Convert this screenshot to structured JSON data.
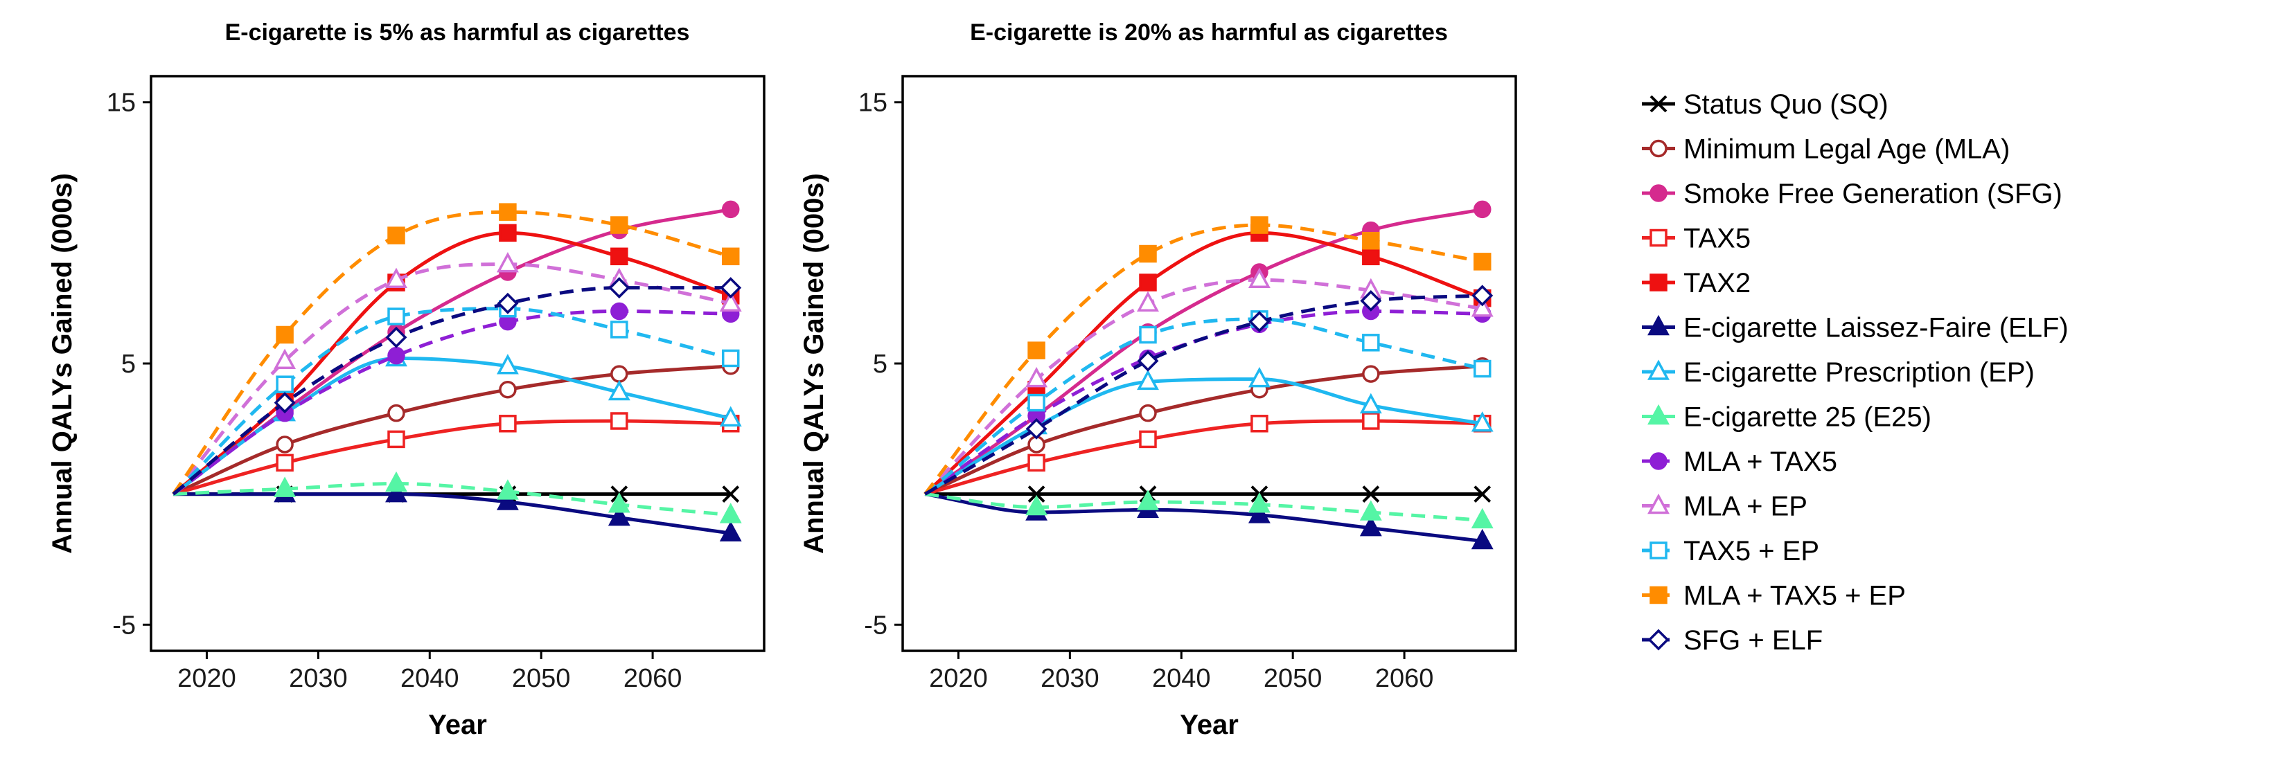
{
  "chart_data": [
    {
      "type": "line",
      "title": "E-cigarette is 5% as harmful as cigarettes",
      "xlabel": "Year",
      "ylabel": "Annual QALYs Gained (000s)",
      "xlim": [
        2015,
        2070
      ],
      "ylim": [
        -6,
        16
      ],
      "xticks": [
        "2020",
        "2030",
        "2040",
        "2050",
        "2060"
      ],
      "yticks": [
        "-5",
        "5",
        "15"
      ],
      "x": [
        2017,
        2027,
        2037,
        2047,
        2057,
        2067
      ],
      "grid": false,
      "series": [
        {
          "name": "Status Quo (SQ)",
          "color": "#000000",
          "dash": "solid",
          "marker": "x",
          "values": [
            0,
            0.0,
            0.0,
            0.0,
            0.0,
            0.0
          ]
        },
        {
          "name": "Minimum Legal Age (MLA)",
          "color": "#A52A2A",
          "dash": "solid",
          "marker": "circle-open",
          "values": [
            0,
            1.9,
            3.1,
            4.0,
            4.6,
            4.9
          ]
        },
        {
          "name": "Smoke Free Generation (SFG)",
          "color": "#D52A8E",
          "dash": "solid",
          "marker": "circle",
          "values": [
            0,
            3.2,
            6.2,
            8.5,
            10.1,
            10.9
          ]
        },
        {
          "name": "TAX5",
          "color": "#EE2222",
          "dash": "solid",
          "marker": "square-open",
          "values": [
            0,
            1.2,
            2.1,
            2.7,
            2.8,
            2.7
          ]
        },
        {
          "name": "TAX2",
          "color": "#EE1111",
          "dash": "solid",
          "marker": "square",
          "values": [
            0,
            3.6,
            8.1,
            10.0,
            9.1,
            7.6
          ]
        },
        {
          "name": "E-cigarette Laissez-Faire (ELF)",
          "color": "#0A0A80",
          "dash": "solid",
          "marker": "triangle",
          "values": [
            0,
            0.0,
            0.0,
            -0.3,
            -0.9,
            -1.5
          ]
        },
        {
          "name": "E-cigarette Prescription (EP)",
          "color": "#1FB8F0",
          "dash": "solid",
          "marker": "triangle-open",
          "values": [
            0,
            3.1,
            5.2,
            4.9,
            3.9,
            2.9
          ]
        },
        {
          "name": "E-cigarette 25 (E25)",
          "color": "#55F5A5",
          "dash": "dashed",
          "marker": "triangle",
          "values": [
            0,
            0.2,
            0.4,
            0.1,
            -0.4,
            -0.8
          ]
        },
        {
          "name": "MLA + TAX5",
          "color": "#8E1FD5",
          "dash": "dashed",
          "marker": "circle",
          "values": [
            0,
            3.1,
            5.3,
            6.6,
            7.0,
            6.9
          ]
        },
        {
          "name": "MLA + EP",
          "color": "#D070D8",
          "dash": "dashed",
          "marker": "triangle-open",
          "values": [
            0,
            5.1,
            8.2,
            8.8,
            8.2,
            7.3
          ]
        },
        {
          "name": "TAX5 + EP",
          "color": "#20B8F0",
          "dash": "dashed",
          "marker": "square-open",
          "values": [
            0,
            4.2,
            6.8,
            7.1,
            6.3,
            5.2
          ]
        },
        {
          "name": "MLA + TAX5 + EP",
          "color": "#FF8C00",
          "dash": "dashed",
          "marker": "square",
          "values": [
            0,
            6.1,
            9.9,
            10.8,
            10.3,
            9.1
          ]
        },
        {
          "name": "SFG + ELF",
          "color": "#0A0A80",
          "dash": "dashed",
          "marker": "diamond-open",
          "values": [
            0,
            3.5,
            6.0,
            7.3,
            7.9,
            7.9
          ]
        }
      ]
    },
    {
      "type": "line",
      "title": "E-cigarette is 20% as harmful as cigarettes",
      "xlabel": "Year",
      "ylabel": "Annual QALYs Gained (000s)",
      "xlim": [
        2015,
        2070
      ],
      "ylim": [
        -6,
        16
      ],
      "xticks": [
        "2020",
        "2030",
        "2040",
        "2050",
        "2060"
      ],
      "yticks": [
        "-5",
        "5",
        "15"
      ],
      "x": [
        2017,
        2027,
        2037,
        2047,
        2057,
        2067
      ],
      "grid": false,
      "series": [
        {
          "name": "Status Quo (SQ)",
          "color": "#000000",
          "dash": "solid",
          "marker": "x",
          "values": [
            0,
            0.0,
            0.0,
            0.0,
            0.0,
            0.0
          ]
        },
        {
          "name": "Minimum Legal Age (MLA)",
          "color": "#A52A2A",
          "dash": "solid",
          "marker": "circle-open",
          "values": [
            0,
            1.9,
            3.1,
            4.0,
            4.6,
            4.9
          ]
        },
        {
          "name": "Smoke Free Generation (SFG)",
          "color": "#D52A8E",
          "dash": "solid",
          "marker": "circle",
          "values": [
            0,
            3.0,
            6.2,
            8.5,
            10.1,
            10.9
          ]
        },
        {
          "name": "TAX5",
          "color": "#EE2222",
          "dash": "solid",
          "marker": "square-open",
          "values": [
            0,
            1.2,
            2.1,
            2.7,
            2.8,
            2.7
          ]
        },
        {
          "name": "TAX2",
          "color": "#EE1111",
          "dash": "solid",
          "marker": "square",
          "values": [
            0,
            4.0,
            8.1,
            10.0,
            9.1,
            7.5
          ]
        },
        {
          "name": "E-cigarette Laissez-Faire (ELF)",
          "color": "#0A0A80",
          "dash": "solid",
          "marker": "triangle",
          "values": [
            0,
            -0.7,
            -0.6,
            -0.8,
            -1.3,
            -1.8
          ]
        },
        {
          "name": "E-cigarette Prescription (EP)",
          "color": "#1FB8F0",
          "dash": "solid",
          "marker": "triangle-open",
          "values": [
            0,
            2.6,
            4.3,
            4.4,
            3.4,
            2.7
          ]
        },
        {
          "name": "E-cigarette 25 (E25)",
          "color": "#55F5A5",
          "dash": "dashed",
          "marker": "triangle",
          "values": [
            0,
            -0.5,
            -0.3,
            -0.4,
            -0.7,
            -1.0
          ]
        },
        {
          "name": "MLA + TAX5",
          "color": "#8E1FD5",
          "dash": "dashed",
          "marker": "circle",
          "values": [
            0,
            3.0,
            5.2,
            6.5,
            7.0,
            6.9
          ]
        },
        {
          "name": "MLA + EP",
          "color": "#D070D8",
          "dash": "dashed",
          "marker": "triangle-open",
          "values": [
            0,
            4.4,
            7.3,
            8.2,
            7.8,
            7.1
          ]
        },
        {
          "name": "TAX5 + EP",
          "color": "#20B8F0",
          "dash": "dashed",
          "marker": "square-open",
          "values": [
            0,
            3.5,
            6.1,
            6.7,
            5.8,
            4.8
          ]
        },
        {
          "name": "MLA + TAX5 + EP",
          "color": "#FF8C00",
          "dash": "dashed",
          "marker": "square",
          "values": [
            0,
            5.5,
            9.2,
            10.3,
            9.7,
            8.9
          ]
        },
        {
          "name": "SFG + ELF",
          "color": "#0A0A80",
          "dash": "dashed",
          "marker": "diamond-open",
          "values": [
            0,
            2.5,
            5.1,
            6.6,
            7.4,
            7.6
          ]
        }
      ]
    }
  ],
  "legend": {
    "placement": "right",
    "items": [
      {
        "label": "Status Quo (SQ)",
        "color": "#000000",
        "dash": "solid",
        "marker": "x"
      },
      {
        "label": "Minimum Legal Age (MLA)",
        "color": "#A52A2A",
        "dash": "solid",
        "marker": "circle-open"
      },
      {
        "label": "Smoke Free Generation (SFG)",
        "color": "#D52A8E",
        "dash": "solid",
        "marker": "circle"
      },
      {
        "label": "TAX5",
        "color": "#EE2222",
        "dash": "solid",
        "marker": "square-open"
      },
      {
        "label": "TAX2",
        "color": "#EE1111",
        "dash": "solid",
        "marker": "square"
      },
      {
        "label": "E-cigarette Laissez-Faire (ELF)",
        "color": "#0A0A80",
        "dash": "solid",
        "marker": "triangle"
      },
      {
        "label": "E-cigarette Prescription (EP)",
        "color": "#1FB8F0",
        "dash": "solid",
        "marker": "triangle-open"
      },
      {
        "label": "E-cigarette 25 (E25)",
        "color": "#55F5A5",
        "dash": "solid",
        "marker": "triangle"
      },
      {
        "label": "MLA + TAX5",
        "color": "#8E1FD5",
        "dash": "dashed",
        "marker": "circle"
      },
      {
        "label": "MLA + EP",
        "color": "#D070D8",
        "dash": "dashed",
        "marker": "triangle-open"
      },
      {
        "label": "TAX5 + EP",
        "color": "#20B8F0",
        "dash": "dashed",
        "marker": "square-open"
      },
      {
        "label": "MLA + TAX5 + EP",
        "color": "#FF8C00",
        "dash": "dashed",
        "marker": "square"
      },
      {
        "label": "SFG + ELF",
        "color": "#0A0A80",
        "dash": "dashed",
        "marker": "diamond-open"
      }
    ]
  }
}
